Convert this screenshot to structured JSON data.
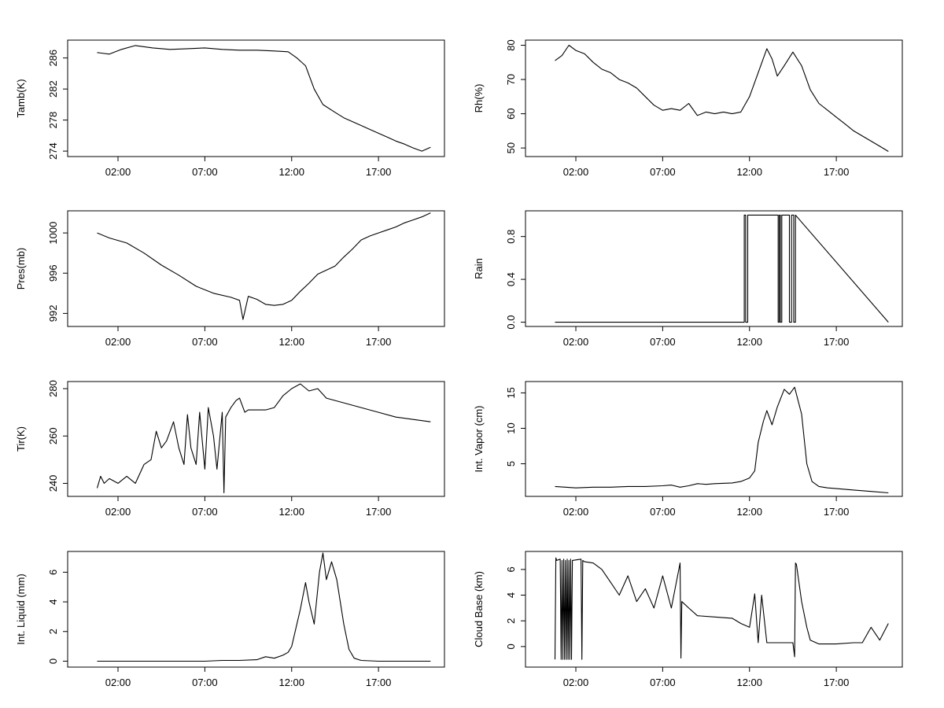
{
  "chart_data": [
    {
      "type": "line",
      "title": "",
      "xlabel": "",
      "ylabel": "Tamb(K)",
      "xticks": [
        "02:00",
        "07:00",
        "12:00",
        "17:00"
      ],
      "yticks": [
        "274",
        "278",
        "282",
        "286"
      ],
      "xlim": [
        -0.9,
        20.8
      ],
      "ylim": [
        273.3,
        288.3
      ],
      "x": [
        0.8,
        1.5,
        2.2,
        3.0,
        4.0,
        5.0,
        6.0,
        7.0,
        8.0,
        9.0,
        10.0,
        11.0,
        11.8,
        12.3,
        12.8,
        13.3,
        13.8,
        14.5,
        15.0,
        15.5,
        16.0,
        16.5,
        17.0,
        17.5,
        18.0,
        18.5,
        19.0,
        19.5,
        20.0
      ],
      "y": [
        286.7,
        286.5,
        287.1,
        287.6,
        287.3,
        287.1,
        287.2,
        287.3,
        287.1,
        287.0,
        287.0,
        286.9,
        286.8,
        286.0,
        285.0,
        282.0,
        280.0,
        279.0,
        278.3,
        277.8,
        277.3,
        276.8,
        276.3,
        275.8,
        275.3,
        274.9,
        274.4,
        274.0,
        274.5
      ]
    },
    {
      "type": "line",
      "title": "",
      "xlabel": "",
      "ylabel": "Rh(%)",
      "xticks": [
        "02:00",
        "07:00",
        "12:00",
        "17:00"
      ],
      "yticks": [
        "50",
        "60",
        "70",
        "80"
      ],
      "xlim": [
        -0.9,
        20.8
      ],
      "ylim": [
        47.5,
        81.5
      ],
      "x": [
        0.8,
        1.2,
        1.6,
        2.0,
        2.5,
        3.0,
        3.5,
        4.0,
        4.5,
        5.0,
        5.5,
        6.0,
        6.5,
        7.0,
        7.5,
        8.0,
        8.5,
        9.0,
        9.5,
        10.0,
        10.5,
        11.0,
        11.5,
        12.0,
        12.5,
        13.0,
        13.3,
        13.6,
        14.0,
        14.5,
        15.0,
        15.5,
        16.0,
        16.5,
        17.0,
        17.5,
        18.0,
        18.5,
        19.0,
        19.5,
        20.0
      ],
      "y": [
        75.5,
        77.0,
        80.0,
        78.5,
        77.5,
        75.0,
        73.0,
        72.0,
        70.0,
        69.0,
        67.5,
        65.0,
        62.5,
        61.0,
        61.5,
        61.0,
        63.0,
        59.5,
        60.5,
        60.0,
        60.5,
        60.0,
        60.5,
        65.0,
        72.0,
        79.0,
        76.0,
        71.0,
        74.0,
        78.0,
        74.0,
        67.0,
        63.0,
        61.0,
        59.0,
        57.0,
        55.0,
        53.5,
        52.0,
        50.5,
        49.0
      ]
    },
    {
      "type": "line",
      "title": "",
      "xlabel": "",
      "ylabel": "Pres(mb)",
      "xticks": [
        "02:00",
        "07:00",
        "12:00",
        "17:00"
      ],
      "yticks": [
        "992",
        "996",
        "1000"
      ],
      "xlim": [
        -0.9,
        20.8
      ],
      "ylim": [
        990.7,
        1002.2
      ],
      "x": [
        0.8,
        1.5,
        2.5,
        3.5,
        4.5,
        5.5,
        6.5,
        7.5,
        8.5,
        9.0,
        9.2,
        9.5,
        10.0,
        10.5,
        11.0,
        11.5,
        12.0,
        12.5,
        13.0,
        13.5,
        14.0,
        14.5,
        15.0,
        15.5,
        16.0,
        16.5,
        17.0,
        17.5,
        18.0,
        18.5,
        19.0,
        19.5,
        20.0
      ],
      "y": [
        1000.0,
        999.5,
        999.0,
        998.0,
        996.8,
        995.8,
        994.7,
        994.0,
        993.6,
        993.3,
        991.4,
        993.7,
        993.4,
        992.9,
        992.8,
        992.9,
        993.3,
        994.2,
        995.0,
        995.9,
        996.3,
        996.7,
        997.6,
        998.4,
        999.3,
        999.7,
        1000.0,
        1000.3,
        1000.6,
        1001.0,
        1001.3,
        1001.6,
        1002.0
      ]
    },
    {
      "type": "line",
      "title": "",
      "xlabel": "",
      "ylabel": "Rain",
      "xticks": [
        "02:00",
        "07:00",
        "12:00",
        "17:00"
      ],
      "yticks": [
        "0.0",
        "0.4",
        "0.8"
      ],
      "xlim": [
        -0.9,
        20.8
      ],
      "ylim": [
        -0.04,
        1.04
      ],
      "x": [
        0.8,
        11.7,
        11.7,
        11.78,
        11.78,
        11.9,
        11.9,
        12.05,
        12.05,
        13.65,
        13.65,
        13.72,
        13.72,
        13.78,
        13.78,
        13.86,
        13.86,
        14.3,
        14.3,
        14.42,
        14.42,
        14.55,
        14.55,
        14.65,
        14.65,
        20.0
      ],
      "y": [
        0,
        0,
        1,
        1,
        0,
        0,
        1,
        1,
        1,
        1,
        0,
        0,
        1,
        1,
        0,
        0,
        1,
        1,
        0,
        0,
        1,
        1,
        0,
        0,
        1,
        0
      ]
    },
    {
      "type": "line",
      "title": "",
      "xlabel": "",
      "ylabel": "Tir(K)",
      "xticks": [
        "02:00",
        "07:00",
        "12:00",
        "17:00"
      ],
      "yticks": [
        "240",
        "260",
        "280"
      ],
      "xlim": [
        -0.9,
        20.8
      ],
      "ylim": [
        234.5,
        283.0
      ],
      "x": [
        0.8,
        1.0,
        1.2,
        1.5,
        2.0,
        2.5,
        3.0,
        3.5,
        3.9,
        4.2,
        4.5,
        4.8,
        5.2,
        5.5,
        5.8,
        6.0,
        6.2,
        6.5,
        6.7,
        7.0,
        7.2,
        7.5,
        7.7,
        8.0,
        8.1,
        8.2,
        8.5,
        8.8,
        9.0,
        9.3,
        9.5,
        10.0,
        10.5,
        11.0,
        11.5,
        12.0,
        12.5,
        13.0,
        13.5,
        14.0,
        14.5,
        15.0,
        15.5,
        16.0,
        17.0,
        18.0,
        19.0,
        20.0
      ],
      "y": [
        238,
        243,
        240,
        242,
        240,
        243,
        240,
        248,
        250,
        262,
        255,
        258,
        266,
        255,
        248,
        269,
        255,
        248,
        270,
        246,
        272,
        260,
        246,
        270,
        236,
        268,
        272,
        275,
        276,
        270,
        271,
        271,
        271,
        272,
        277,
        280,
        282,
        279,
        280,
        276,
        275,
        274,
        273,
        272,
        270,
        268,
        267,
        266
      ]
    },
    {
      "type": "line",
      "title": "",
      "xlabel": "",
      "ylabel": "Int. Vapor (cm)",
      "xticks": [
        "02:00",
        "07:00",
        "12:00",
        "17:00"
      ],
      "yticks": [
        "5",
        "10",
        "15"
      ],
      "xlim": [
        -0.9,
        20.8
      ],
      "ylim": [
        0.4,
        16.6
      ],
      "x": [
        0.8,
        2.0,
        3.0,
        4.0,
        5.0,
        6.0,
        7.0,
        7.5,
        8.0,
        8.5,
        9.0,
        9.5,
        10.0,
        11.0,
        11.5,
        12.0,
        12.3,
        12.5,
        12.8,
        13.0,
        13.3,
        13.6,
        14.0,
        14.3,
        14.6,
        15.0,
        15.3,
        15.6,
        16.0,
        16.5,
        17.0,
        18.0,
        19.0,
        20.0
      ],
      "y": [
        1.8,
        1.6,
        1.7,
        1.7,
        1.8,
        1.8,
        1.9,
        2.0,
        1.7,
        1.9,
        2.2,
        2.1,
        2.2,
        2.3,
        2.5,
        3.0,
        4.0,
        8.0,
        11.0,
        12.5,
        10.5,
        13.0,
        15.5,
        14.8,
        15.8,
        12.0,
        5.0,
        2.5,
        1.8,
        1.6,
        1.5,
        1.3,
        1.1,
        0.9
      ]
    },
    {
      "type": "line",
      "title": "",
      "xlabel": "",
      "ylabel": "Int. Liquid (mm)",
      "xticks": [
        "02:00",
        "07:00",
        "12:00",
        "17:00"
      ],
      "yticks": [
        "0",
        "2",
        "4",
        "6"
      ],
      "xlim": [
        -0.9,
        20.8
      ],
      "ylim": [
        -0.4,
        7.4
      ],
      "x": [
        0.8,
        5.0,
        7.0,
        8.0,
        9.0,
        10.0,
        10.5,
        11.0,
        11.5,
        11.8,
        12.0,
        12.3,
        12.5,
        12.8,
        13.0,
        13.3,
        13.6,
        13.8,
        14.0,
        14.3,
        14.6,
        15.0,
        15.3,
        15.6,
        16.0,
        17.0,
        18.0,
        19.0,
        20.0
      ],
      "y": [
        0.0,
        0.0,
        0.0,
        0.05,
        0.05,
        0.1,
        0.3,
        0.2,
        0.4,
        0.6,
        1.0,
        2.5,
        3.5,
        5.3,
        4.0,
        2.5,
        6.0,
        7.3,
        5.5,
        6.7,
        5.5,
        2.5,
        0.8,
        0.2,
        0.05,
        0.0,
        0.0,
        0.0,
        0.0
      ]
    },
    {
      "type": "line",
      "title": "",
      "xlabel": "",
      "ylabel": "Cloud Base (km)",
      "xticks": [
        "02:00",
        "07:00",
        "12:00",
        "17:00"
      ],
      "yticks": [
        "0",
        "2",
        "4",
        "6"
      ],
      "xlim": [
        -0.9,
        20.8
      ],
      "ylim": [
        -1.6,
        7.4
      ],
      "x": [
        0.8,
        0.85,
        0.9,
        1.1,
        1.15,
        1.2,
        1.25,
        1.3,
        1.35,
        1.4,
        1.45,
        1.5,
        1.55,
        1.6,
        1.65,
        1.7,
        1.75,
        1.8,
        2.3,
        2.35,
        2.4,
        2.5,
        3.0,
        3.5,
        4.0,
        4.5,
        5.0,
        5.5,
        6.0,
        6.5,
        7.0,
        7.5,
        8.0,
        8.05,
        8.1,
        8.5,
        9.0,
        10.0,
        11.0,
        11.5,
        12.0,
        12.3,
        12.5,
        12.7,
        13.0,
        13.5,
        14.0,
        14.5,
        14.6,
        14.65,
        14.7,
        15.0,
        15.3,
        15.5,
        16.0,
        17.0,
        18.0,
        18.5,
        19.0,
        19.5,
        20.0
      ],
      "y": [
        -1.0,
        6.9,
        6.7,
        6.8,
        -1.0,
        6.7,
        -1.0,
        6.8,
        -1.0,
        6.7,
        -1.0,
        6.8,
        -1.0,
        6.7,
        -1.0,
        6.8,
        -1.0,
        6.7,
        6.8,
        -1.0,
        6.7,
        6.6,
        6.5,
        6.0,
        5.0,
        4.0,
        5.5,
        3.5,
        4.5,
        3.0,
        5.5,
        3.0,
        6.5,
        -0.9,
        3.5,
        3.0,
        2.4,
        2.3,
        2.2,
        1.8,
        1.5,
        4.1,
        0.3,
        4.0,
        0.3,
        0.3,
        0.3,
        0.3,
        -0.8,
        6.5,
        6.4,
        3.5,
        1.5,
        0.5,
        0.2,
        0.2,
        0.3,
        0.3,
        1.5,
        0.5,
        1.8
      ]
    }
  ]
}
